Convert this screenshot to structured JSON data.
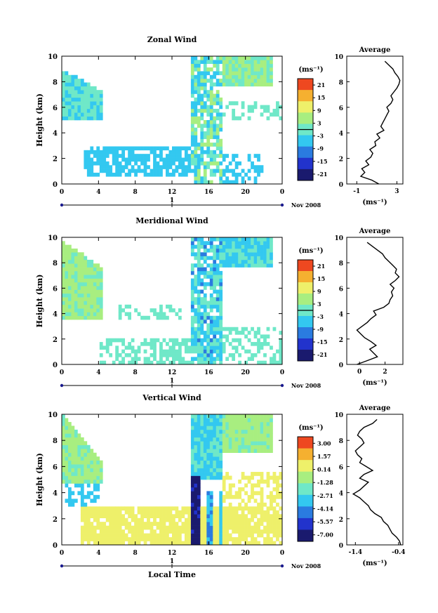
{
  "panels": [
    {
      "title": "Zonal Wind",
      "ylabel": "Height (km)",
      "yticks": [
        "0",
        "2",
        "4",
        "6",
        "8",
        "10"
      ],
      "xticks": [
        "0",
        "4",
        "8",
        "12",
        "16",
        "20",
        "0"
      ],
      "day_tick": "1",
      "date_label": "Nov 2008",
      "cb_unit": "(ms⁻¹)",
      "cb_ticks": [
        "21",
        "15",
        "9",
        "3",
        "-3",
        "-9",
        "-15",
        "-21"
      ],
      "avg_title": "Average",
      "avg_xticks": [
        "-1",
        "3"
      ],
      "avg_xlabel": "(ms⁻¹)"
    },
    {
      "title": "Meridional Wind",
      "ylabel": "Height (km)",
      "yticks": [
        "0",
        "2",
        "4",
        "6",
        "8",
        "10"
      ],
      "xticks": [
        "0",
        "4",
        "8",
        "12",
        "16",
        "20",
        "0"
      ],
      "day_tick": "1",
      "date_label": "Nov 2008",
      "cb_unit": "(ms⁻¹)",
      "cb_ticks": [
        "21",
        "15",
        "9",
        "3",
        "-3",
        "-9",
        "-15",
        "-21"
      ],
      "avg_title": "Average",
      "avg_xticks": [
        "0",
        "2"
      ],
      "avg_xlabel": "(ms⁻¹)"
    },
    {
      "title": "Vertical Wind",
      "ylabel": "Height (km)",
      "yticks": [
        "0",
        "2",
        "4",
        "6",
        "8",
        "10"
      ],
      "xticks": [
        "0",
        "4",
        "8",
        "12",
        "16",
        "20",
        "0"
      ],
      "day_tick": "1",
      "date_label": "Nov 2008",
      "xlabel": "Local Time",
      "cb_unit": "(ms⁻¹)",
      "cb_ticks": [
        "3.00",
        "1.57",
        "0.14",
        "-1.28",
        "-2.71",
        "-4.14",
        "-5.57",
        "-7.00"
      ],
      "avg_title": "Average",
      "avg_xticks": [
        "-1.4",
        "-0.4"
      ],
      "avg_xlabel": "(ms⁻¹)"
    }
  ],
  "chart_data": [
    {
      "type": "heatmap",
      "title": "Zonal Wind",
      "xlabel": "",
      "ylabel": "Height (km)",
      "xlim": [
        0,
        24
      ],
      "ylim": [
        0,
        10
      ],
      "colorbar_range": [
        -24,
        24
      ],
      "colors": [
        "#1a1a6e",
        "#2233cc",
        "#2a7be0",
        "#33c8f0",
        "#6fe8c8",
        "#a8ee80",
        "#eef06a",
        "#f5b030",
        "#ee4820"
      ],
      "average_profile": {
        "xlim": [
          -2,
          3.6
        ],
        "height": [
          0,
          0.3,
          0.6,
          0.9,
          1.2,
          1.5,
          1.8,
          2.1,
          2.4,
          2.7,
          3.0,
          3.3,
          3.6,
          3.9,
          4.2,
          4.5,
          4.8,
          5.1,
          5.4,
          5.7,
          6.0,
          6.3,
          6.6,
          6.9,
          7.2,
          7.5,
          7.8,
          8.1,
          8.4,
          8.7,
          9.0,
          9.3,
          9.6
        ],
        "value": [
          1.2,
          0.5,
          -0.6,
          -0.2,
          -0.5,
          0.2,
          -0.1,
          0.4,
          0.6,
          0.3,
          0.9,
          0.8,
          1.3,
          1.0,
          1.7,
          1.4,
          1.6,
          1.8,
          2.0,
          2.2,
          2.0,
          2.4,
          2.6,
          2.4,
          2.7,
          3.0,
          3.2,
          3.3,
          3.1,
          2.8,
          2.6,
          2.2,
          1.8
        ]
      }
    },
    {
      "type": "heatmap",
      "title": "Meridional Wind",
      "xlabel": "",
      "ylabel": "Height (km)",
      "xlim": [
        0,
        24
      ],
      "ylim": [
        0,
        10
      ],
      "colorbar_range": [
        -24,
        24
      ],
      "colors": [
        "#1a1a6e",
        "#2233cc",
        "#2a7be0",
        "#33c8f0",
        "#6fe8c8",
        "#a8ee80",
        "#eef06a",
        "#f5b030",
        "#ee4820"
      ],
      "average_profile": {
        "xlim": [
          -1,
          3.4
        ],
        "height": [
          0,
          0.3,
          0.6,
          0.9,
          1.2,
          1.5,
          1.8,
          2.1,
          2.4,
          2.7,
          3.0,
          3.3,
          3.6,
          3.9,
          4.2,
          4.5,
          4.8,
          5.1,
          5.4,
          5.7,
          6.0,
          6.3,
          6.6,
          6.9,
          7.2,
          7.5,
          7.8,
          8.1,
          8.4,
          8.7,
          9.0,
          9.3,
          9.6
        ],
        "value": [
          -0.2,
          0.6,
          1.4,
          1.1,
          0.8,
          1.3,
          0.9,
          0.4,
          0.1,
          -0.2,
          0.2,
          0.6,
          0.9,
          1.3,
          1.1,
          1.9,
          2.3,
          2.4,
          2.6,
          2.5,
          2.7,
          2.4,
          2.8,
          3.1,
          2.8,
          2.9,
          2.6,
          2.3,
          2.0,
          1.8,
          1.4,
          1.0,
          0.6
        ]
      }
    },
    {
      "type": "heatmap",
      "title": "Vertical Wind",
      "xlabel": "Local Time",
      "ylabel": "Height (km)",
      "xlim": [
        0,
        24
      ],
      "ylim": [
        0,
        10
      ],
      "colorbar_range": [
        3.0,
        -7.0
      ],
      "colors": [
        "#1a1a6e",
        "#2233cc",
        "#2a7be0",
        "#33c8f0",
        "#6fe8c8",
        "#a8ee80",
        "#eef06a",
        "#f5b030",
        "#ee4820"
      ],
      "average_profile": {
        "xlim": [
          -1.6,
          -0.3
        ],
        "height": [
          0,
          0.3,
          0.6,
          0.9,
          1.2,
          1.5,
          1.8,
          2.1,
          2.4,
          2.7,
          3.0,
          3.3,
          3.6,
          3.9,
          4.2,
          4.5,
          4.8,
          5.1,
          5.4,
          5.7,
          6.0,
          6.3,
          6.6,
          6.9,
          7.2,
          7.5,
          7.8,
          8.1,
          8.4,
          8.7,
          9.0,
          9.3,
          9.6
        ],
        "value": [
          -0.35,
          -0.38,
          -0.45,
          -0.55,
          -0.6,
          -0.65,
          -0.75,
          -0.8,
          -0.95,
          -1.05,
          -1.1,
          -1.2,
          -1.3,
          -1.45,
          -1.3,
          -1.2,
          -1.1,
          -1.3,
          -1.2,
          -1.0,
          -1.15,
          -1.3,
          -1.25,
          -1.35,
          -1.4,
          -1.3,
          -1.2,
          -1.25,
          -1.35,
          -1.3,
          -1.2,
          -1.0,
          -0.9
        ]
      }
    }
  ]
}
